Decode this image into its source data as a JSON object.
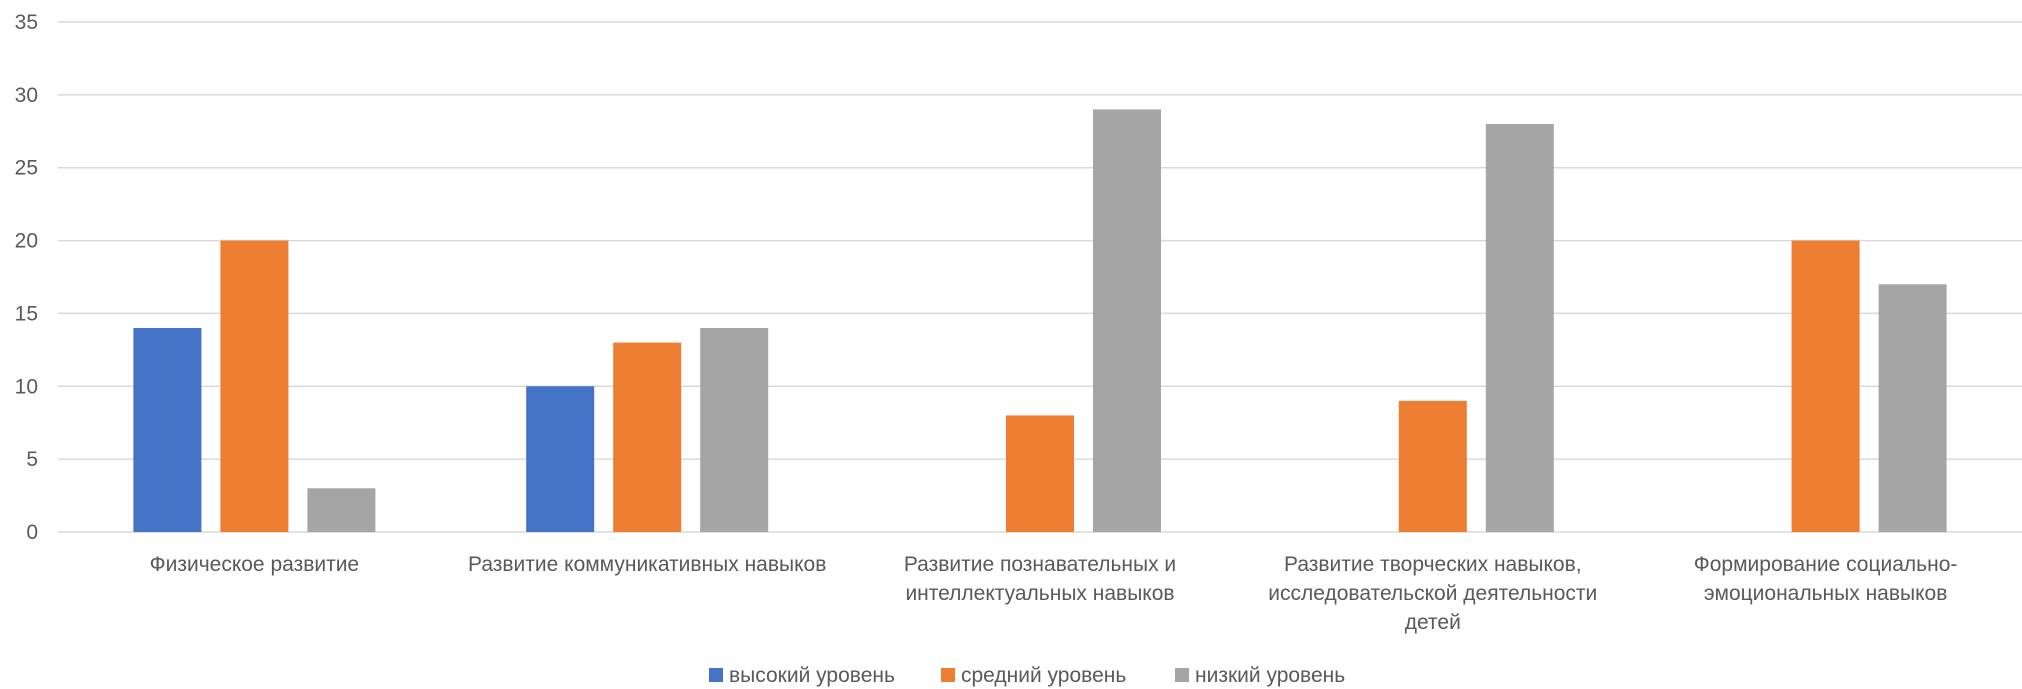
{
  "chart_data": {
    "type": "bar",
    "title": "",
    "xlabel": "",
    "ylabel": "",
    "ylim": [
      0,
      35
    ],
    "yticks": [
      0,
      5,
      10,
      15,
      20,
      25,
      30,
      35
    ],
    "grid": true,
    "legend_position": "bottom",
    "categories": [
      [
        "Физическое развитие"
      ],
      [
        "Развитие коммуникативных навыков"
      ],
      [
        "Развитие познавательных и",
        "интеллектуальных навыков"
      ],
      [
        "Развитие творческих навыков,",
        "исследовательской деятельности",
        "детей"
      ],
      [
        "Формирование социально-",
        "эмоциональных навыков"
      ]
    ],
    "series": [
      {
        "name": "высокий уровень",
        "color": "#4472c4",
        "values": [
          14,
          10,
          0,
          0,
          0
        ]
      },
      {
        "name": "средний уровень",
        "color": "#ed7d31",
        "values": [
          20,
          13,
          8,
          9,
          20
        ]
      },
      {
        "name": "низкий уровень",
        "color": "#a5a5a5",
        "values": [
          3,
          14,
          29,
          28,
          17
        ]
      }
    ]
  }
}
